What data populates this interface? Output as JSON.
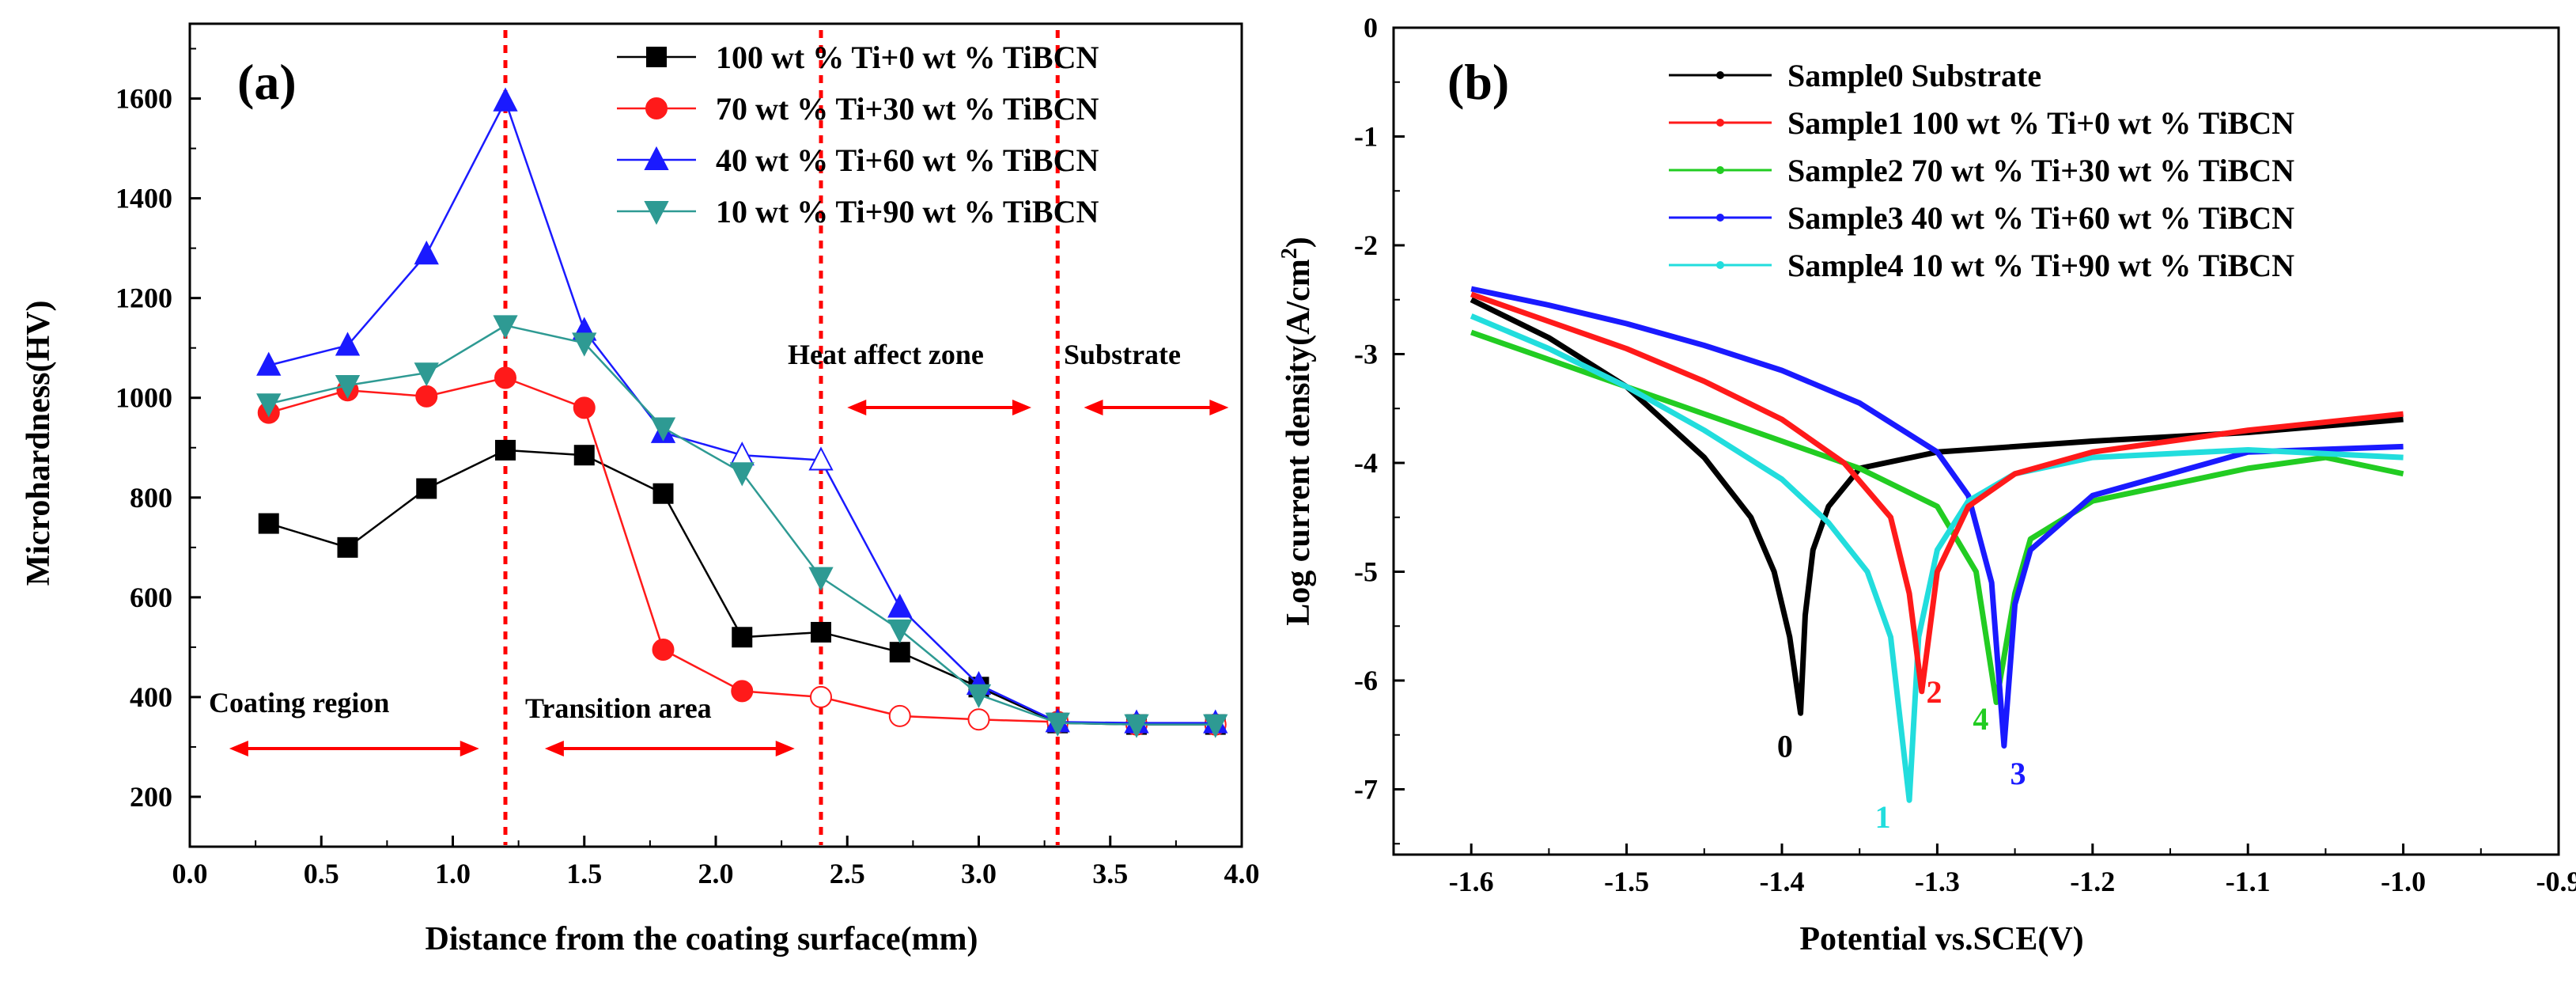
{
  "colors": {
    "black": "#000000",
    "red": "#ff1a1a",
    "blue": "#1a1aff",
    "teal": "#2e9a93",
    "green": "#22cc22",
    "cyan": "#22dddd",
    "annot": "#ff0000"
  },
  "chart_data": [
    {
      "type": "line",
      "panel_label": "(a)",
      "xlabel": "Distance from the coating surface(mm)",
      "ylabel": "Microhardness(HV)",
      "xlim": [
        0.0,
        4.0
      ],
      "ylim": [
        100,
        1750
      ],
      "x_ticks": [
        "0.0",
        "0.5",
        "1.0",
        "1.5",
        "2.0",
        "2.5",
        "3.0",
        "3.5",
        "4.0"
      ],
      "y_ticks": [
        "200",
        "400",
        "600",
        "800",
        "1000",
        "1200",
        "1400",
        "1600"
      ],
      "x": [
        0.3,
        0.6,
        0.9,
        1.2,
        1.5,
        1.8,
        2.1,
        2.4,
        2.7,
        3.0,
        3.3,
        3.6,
        3.9
      ],
      "series": [
        {
          "name": "100 wt % Ti+0 wt % TiBCN",
          "marker": "square",
          "color": "#000000",
          "values": [
            748,
            700,
            818,
            895,
            885,
            808,
            520,
            530,
            490,
            420,
            348,
            345,
            345
          ]
        },
        {
          "name": "70 wt % Ti+30 wt % TiBCN",
          "marker": "circle",
          "color": "#ff1a1a",
          "values": [
            970,
            1015,
            1003,
            1040,
            980,
            495,
            412,
            400,
            362,
            355,
            350,
            345,
            345
          ]
        },
        {
          "name": "40 wt % Ti+60 wt % TiBCN",
          "marker": "triangle-up",
          "color": "#1a1aff",
          "values": [
            1065,
            1105,
            1288,
            1595,
            1135,
            930,
            885,
            875,
            580,
            425,
            350,
            348,
            348
          ]
        },
        {
          "name": "10 wt % Ti+90 wt % TiBCN",
          "marker": "triangle-down",
          "color": "#2e9a93",
          "values": [
            988,
            1025,
            1050,
            1145,
            1110,
            940,
            850,
            640,
            535,
            405,
            348,
            345,
            345
          ]
        }
      ],
      "zone_boundaries_mm": [
        1.2,
        2.4,
        3.3
      ],
      "annotations": [
        "Coating region",
        "Transition area",
        "Heat affect zone",
        "Substrate"
      ]
    },
    {
      "type": "line",
      "panel_label": "(b)",
      "xlabel": "Potential vs.SCE(V)",
      "ylabel_main": "Log current density(A/cm",
      "ylabel_sup": "2",
      "ylabel_close": ")",
      "xlim": [
        -1.65,
        -0.9
      ],
      "ylim": [
        -7.6,
        0.0
      ],
      "x_ticks": [
        "-1.6",
        "-1.5",
        "-1.4",
        "-1.3",
        "-1.2",
        "-1.1",
        "-1.0",
        "-0.9"
      ],
      "y_ticks": [
        "0",
        "-1",
        "-2",
        "-3",
        "-4",
        "-5",
        "-6",
        "-7"
      ],
      "series": [
        {
          "name": "Sample0 Substrate",
          "id": "0",
          "color": "#000000",
          "x": [
            -1.6,
            -1.55,
            -1.5,
            -1.45,
            -1.42,
            -1.405,
            -1.395,
            -1.388,
            -1.385,
            -1.38,
            -1.37,
            -1.35,
            -1.3,
            -1.2,
            -1.1,
            -1.0
          ],
          "y": [
            -2.5,
            -2.85,
            -3.3,
            -3.95,
            -4.5,
            -5.0,
            -5.6,
            -6.3,
            -5.4,
            -4.8,
            -4.4,
            -4.05,
            -3.9,
            -3.8,
            -3.72,
            -3.6
          ]
        },
        {
          "name": "Sample1 100 wt % Ti+0 wt % TiBCN",
          "id": "2",
          "color": "#ff1a1a",
          "x": [
            -1.6,
            -1.55,
            -1.5,
            -1.45,
            -1.4,
            -1.36,
            -1.33,
            -1.318,
            -1.31,
            -1.3,
            -1.28,
            -1.25,
            -1.2,
            -1.1,
            -1.0
          ],
          "y": [
            -2.45,
            -2.7,
            -2.95,
            -3.25,
            -3.6,
            -4.0,
            -4.5,
            -5.2,
            -6.1,
            -5.0,
            -4.4,
            -4.1,
            -3.9,
            -3.7,
            -3.55
          ]
        },
        {
          "name": "Sample2 70 wt % Ti+30 wt % TiBCN",
          "id": "4",
          "color": "#22cc22",
          "x": [
            -1.6,
            -1.55,
            -1.5,
            -1.45,
            -1.4,
            -1.35,
            -1.3,
            -1.275,
            -1.262,
            -1.25,
            -1.24,
            -1.2,
            -1.1,
            -1.05,
            -1.0
          ],
          "y": [
            -2.8,
            -3.05,
            -3.3,
            -3.55,
            -3.8,
            -4.05,
            -4.4,
            -5.0,
            -6.2,
            -5.2,
            -4.7,
            -4.35,
            -4.05,
            -3.95,
            -4.1
          ]
        },
        {
          "name": "Sample3 40 wt % Ti+60 wt % TiBCN",
          "id": "3",
          "color": "#1a1aff",
          "x": [
            -1.6,
            -1.55,
            -1.5,
            -1.45,
            -1.4,
            -1.35,
            -1.3,
            -1.28,
            -1.265,
            -1.257,
            -1.25,
            -1.24,
            -1.2,
            -1.1,
            -1.0
          ],
          "y": [
            -2.4,
            -2.55,
            -2.72,
            -2.92,
            -3.15,
            -3.45,
            -3.9,
            -4.3,
            -5.1,
            -6.6,
            -5.3,
            -4.8,
            -4.3,
            -3.9,
            -3.85
          ]
        },
        {
          "name": "Sample4 10 wt % Ti+90 wt % TiBCN",
          "id": "1",
          "color": "#22dddd",
          "x": [
            -1.6,
            -1.55,
            -1.5,
            -1.45,
            -1.4,
            -1.37,
            -1.345,
            -1.33,
            -1.318,
            -1.312,
            -1.3,
            -1.28,
            -1.25,
            -1.2,
            -1.1,
            -1.0
          ],
          "y": [
            -2.65,
            -2.95,
            -3.3,
            -3.7,
            -4.15,
            -4.55,
            -5.0,
            -5.6,
            -7.1,
            -5.6,
            -4.8,
            -4.35,
            -4.1,
            -3.95,
            -3.88,
            -3.95
          ]
        }
      ]
    }
  ]
}
